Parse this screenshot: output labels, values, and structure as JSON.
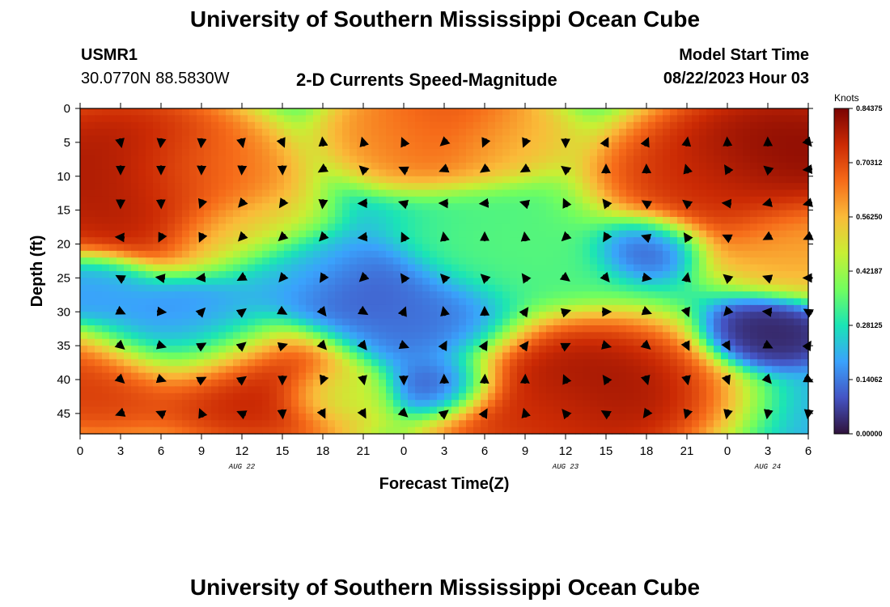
{
  "header": {
    "title": "University of Southern Mississippi Ocean Cube",
    "station_id": "USMR1",
    "coordinates": "30.0770N  88.5830W",
    "model_start_label": "Model Start Time",
    "model_start_value": "08/22/2023 Hour 03",
    "footer_title": "University of Southern Mississippi Ocean Cube"
  },
  "chart_data": {
    "type": "heatmap",
    "title": "2-D Currents Speed-Magnitude",
    "xlabel": "Forecast Time(Z)",
    "ylabel": "Depth (ft)",
    "x_ticks": [
      "0",
      "3",
      "6",
      "9",
      "12",
      "15",
      "18",
      "21",
      "0",
      "3",
      "6",
      "9",
      "12",
      "15",
      "18",
      "21",
      "0",
      "3",
      "6"
    ],
    "x_tick_hours": [
      0,
      3,
      6,
      9,
      12,
      15,
      18,
      21,
      24,
      27,
      30,
      33,
      36,
      39,
      42,
      45,
      48,
      51,
      54
    ],
    "date_labels": [
      {
        "label": "AUG 22",
        "hour": 12
      },
      {
        "label": "AUG 23",
        "hour": 36
      },
      {
        "label": "AUG 24",
        "hour": 51
      }
    ],
    "xlim": [
      0,
      54
    ],
    "y_ticks": [
      "0",
      "5",
      "10",
      "15",
      "20",
      "25",
      "30",
      "35",
      "40",
      "45"
    ],
    "y_tick_values": [
      0,
      5,
      10,
      15,
      20,
      25,
      30,
      35,
      40,
      45
    ],
    "ylim": [
      0,
      48
    ],
    "y_inverted": true,
    "colorbar": {
      "label": "Knots",
      "ticks": [
        "0.84375",
        "0.70312",
        "0.56250",
        "0.42187",
        "0.28125",
        "0.14062",
        "0.00000"
      ],
      "range": [
        0,
        0.84375
      ],
      "colors": [
        "#30123b",
        "#4454c4",
        "#3aa2fc",
        "#1ae4b6",
        "#72fe5e",
        "#c8ef34",
        "#fabb39",
        "#f66b19",
        "#cb2a04",
        "#7a0403"
      ]
    },
    "hotspots": [
      {
        "t": 3,
        "d": 8,
        "v": 0.82,
        "r": 7
      },
      {
        "t": 4,
        "d": 14,
        "v": 0.8,
        "r": 6
      },
      {
        "t": 9,
        "d": 10,
        "v": 0.62,
        "r": 5
      },
      {
        "t": 12,
        "d": 18,
        "v": 0.52,
        "r": 4
      },
      {
        "t": 27,
        "d": 3,
        "v": 0.75,
        "r": 5
      },
      {
        "t": 24,
        "d": 4,
        "v": 0.6,
        "r": 4
      },
      {
        "t": 31,
        "d": 5,
        "v": 0.55,
        "r": 4
      },
      {
        "t": 52,
        "d": 7,
        "v": 0.86,
        "r": 7
      },
      {
        "t": 46,
        "d": 12,
        "v": 0.75,
        "r": 6
      },
      {
        "t": 54,
        "d": 20,
        "v": 0.6,
        "r": 5
      },
      {
        "t": 13,
        "d": 41,
        "v": 0.8,
        "r": 6
      },
      {
        "t": 1,
        "d": 41,
        "v": 0.75,
        "r": 5
      },
      {
        "t": 37,
        "d": 42,
        "v": 0.84,
        "r": 7
      },
      {
        "t": 34,
        "d": 45,
        "v": 0.72,
        "r": 5
      },
      {
        "t": 19,
        "d": 42,
        "v": 0.42,
        "r": 3
      },
      {
        "t": 33,
        "d": 20,
        "v": 0.35,
        "r": 6
      },
      {
        "t": 16,
        "d": 24,
        "v": 0.22,
        "r": 4
      },
      {
        "t": 27,
        "d": 41,
        "v": 0.03,
        "r": 3
      },
      {
        "t": 42,
        "d": 20,
        "v": 0.04,
        "r": 3
      },
      {
        "t": 51,
        "d": 33,
        "v": 0.02,
        "r": 3
      },
      {
        "t": 20,
        "d": 27,
        "v": 0.1,
        "r": 4
      },
      {
        "t": 8,
        "d": 33,
        "v": 0.16,
        "r": 5
      },
      {
        "t": 25,
        "d": 32,
        "v": 0.12,
        "r": 5
      },
      {
        "t": 1,
        "d": 26,
        "v": 0.18,
        "r": 3
      }
    ],
    "vector_times": [
      3,
      6,
      9,
      12,
      15,
      18,
      21,
      24,
      27,
      30,
      33,
      36,
      39,
      42,
      45,
      48,
      51,
      54
    ],
    "vector_depths": [
      5,
      9,
      14,
      19,
      25,
      30,
      35,
      40,
      45
    ]
  }
}
